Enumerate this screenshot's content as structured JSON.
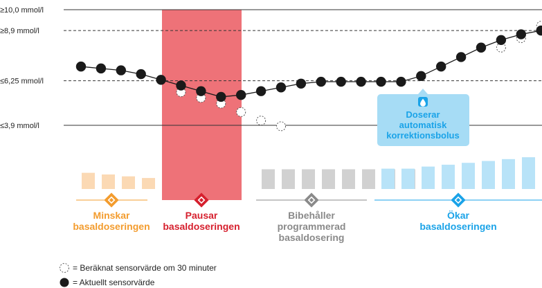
{
  "levels": [
    {
      "label": "≥10,0 mmol/l",
      "value": 10.0,
      "style": "solid"
    },
    {
      "label": "≥8,9 mmol/l",
      "value": 8.9,
      "style": "dashed"
    },
    {
      "label": "≤6,25 mmol/l",
      "value": 6.25,
      "style": "dashed"
    },
    {
      "label": "≤3,9 mmol/l",
      "value": 3.9,
      "style": "solid"
    }
  ],
  "pause_region": {
    "color": "#ee7278"
  },
  "bolus_callout": {
    "lines": [
      "Doserar",
      "automatisk",
      "korrektionsbolus"
    ],
    "bg": "#a6dcf5",
    "text_color": "#1aa3e8",
    "icon": "drop-icon"
  },
  "phases": [
    {
      "lines": [
        "Minskar",
        "basaldoseringen"
      ],
      "color": "#f39c2e",
      "icon_color": "#f39c2e"
    },
    {
      "lines": [
        "Pausar",
        "basaldoseringen"
      ],
      "color": "#d6202e",
      "icon_color": "#d6202e"
    },
    {
      "lines": [
        "Bibehåller",
        "programmerad",
        "basaldosering"
      ],
      "color": "#8a8a8a",
      "icon_color": "#8a8a8a"
    },
    {
      "lines": [
        "Ökar",
        "basaldoseringen"
      ],
      "color": "#1aa3e8",
      "icon_color": "#1aa3e8"
    }
  ],
  "legend": [
    {
      "text": "= Beräknat sensorvärde om 30 minuter",
      "icon": "dashed-circle-icon"
    },
    {
      "text": "= Aktuellt sensorvärde",
      "icon": "filled-circle-icon"
    }
  ],
  "chart_data": {
    "type": "line",
    "ylim": [
      3.9,
      10.0
    ],
    "series": [
      {
        "role": "current",
        "values": [
          7.0,
          6.9,
          6.8,
          6.6,
          6.3,
          6.0,
          5.7,
          5.4,
          5.5,
          5.7,
          5.9,
          6.1,
          6.2,
          6.2,
          6.2,
          6.2,
          6.2,
          6.5,
          7.0,
          7.5,
          8.0,
          8.4,
          8.7,
          8.9,
          8.9
        ]
      },
      {
        "role": "predicted",
        "points": [
          [
            5,
            5.65
          ],
          [
            6,
            5.35
          ],
          [
            7,
            5.05
          ],
          [
            8,
            4.6
          ],
          [
            9,
            4.15
          ],
          [
            10,
            3.85
          ],
          [
            21,
            8.0
          ],
          [
            22,
            8.5
          ],
          [
            23,
            9.15
          ],
          [
            24,
            10.3
          ]
        ]
      }
    ],
    "basal_bars": [
      {
        "phase": 0,
        "values": [
          0.78,
          0.7,
          0.61,
          0.53
        ],
        "color": "#fbd9b4"
      },
      {
        "phase": 2,
        "values": [
          0.95,
          0.95,
          0.95,
          0.95,
          0.95,
          0.95,
          0.95,
          0.95
        ],
        "color": "#d1d1d1"
      },
      {
        "phase": 3,
        "values": [
          0.98,
          0.98,
          1.08,
          1.17,
          1.26,
          1.35,
          1.44,
          1.53,
          1.62,
          1.71
        ],
        "color": "#b8e3f8"
      }
    ]
  }
}
